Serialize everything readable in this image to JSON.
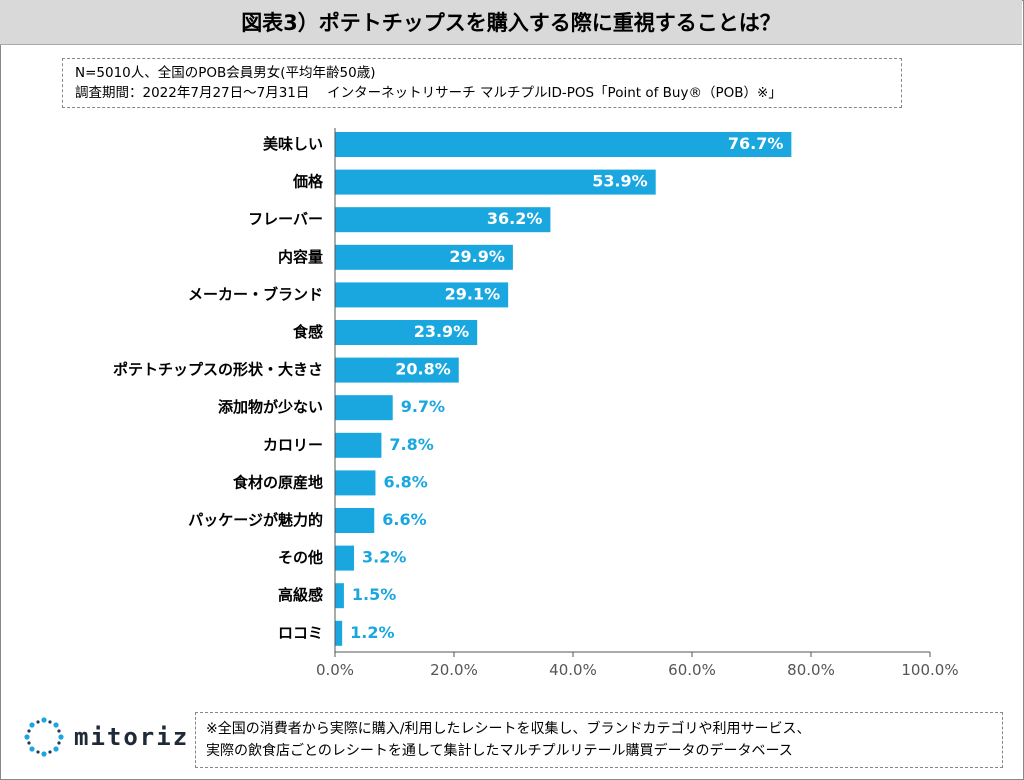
{
  "header": {
    "title": "図表3）ポテトチップスを購入する際に重視することは？"
  },
  "notes": {
    "line1": "N=5010人、全国のPOB会員男女(平均年齢50歳)",
    "line2": "調査期間：2022年7月27日～7月31日　 インターネットリサーチ マルチプルID-POS「Point of Buy®（POB）※」"
  },
  "footer": {
    "logo_text": "mitoriz",
    "footnote_line1": "※全国の消費者から実際に購入/利用したレシートを収集し、ブランドカテゴリや利用サービス、",
    "footnote_line2": "実際の飲食店ごとのレシートを通して集計したマルチプルリテール購買データのデータベース"
  },
  "colors": {
    "bar": "#1aa7e0",
    "label_inside": "#ffffff",
    "label_outside": "#1aa7e0",
    "axis": "#555555",
    "tick_text": "#555555"
  },
  "chart_data": {
    "type": "bar",
    "orientation": "horizontal",
    "categories": [
      "美味しい",
      "価格",
      "フレーバー",
      "内容量",
      "メーカー・ブランド",
      "食感",
      "ポテトチップスの形状・大きさ",
      "添加物が少ない",
      "カロリー",
      "食材の原産地",
      "パッケージが魅力的",
      "その他",
      "高級感",
      "ロコミ"
    ],
    "values": [
      76.7,
      53.9,
      36.2,
      29.9,
      29.1,
      23.9,
      20.8,
      9.7,
      7.8,
      6.8,
      6.6,
      3.2,
      1.5,
      1.2
    ],
    "value_labels": [
      "76.7%",
      "53.9%",
      "36.2%",
      "29.9%",
      "29.1%",
      "23.9%",
      "20.8%",
      "9.7%",
      "7.8%",
      "6.8%",
      "6.6%",
      "3.2%",
      "1.5%",
      "1.2%"
    ],
    "xlim": [
      0,
      100
    ],
    "xticks": [
      0,
      20,
      40,
      60,
      80,
      100
    ],
    "xtick_labels": [
      "0.0%",
      "20.0%",
      "40.0%",
      "60.0%",
      "80.0%",
      "100.0%"
    ],
    "grid": false,
    "legend": "none"
  }
}
